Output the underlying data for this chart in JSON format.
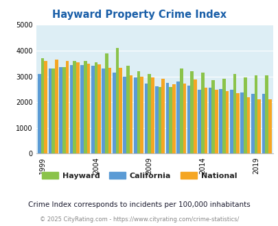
{
  "title": "Hayward Property Crime Index",
  "years": [
    1999,
    2000,
    2001,
    2002,
    2003,
    2004,
    2005,
    2006,
    2007,
    2008,
    2009,
    2010,
    2011,
    2012,
    2013,
    2014,
    2015,
    2016,
    2017,
    2018,
    2019,
    2020
  ],
  "hayward": [
    3700,
    3300,
    3350,
    3600,
    3600,
    3550,
    3900,
    4100,
    3400,
    3200,
    3100,
    2600,
    2600,
    3300,
    3200,
    3150,
    2850,
    2900,
    3100,
    2950,
    3050,
    3050
  ],
  "california": [
    3100,
    3300,
    3350,
    3450,
    3450,
    3400,
    3300,
    3150,
    3000,
    2950,
    2720,
    2620,
    2750,
    2800,
    2650,
    2470,
    2550,
    2520,
    2490,
    2380,
    2330,
    2330
  ],
  "national": [
    3600,
    3650,
    3600,
    3550,
    3500,
    3470,
    3340,
    3340,
    3050,
    3000,
    2950,
    2920,
    2700,
    2730,
    2870,
    2550,
    2490,
    2440,
    2360,
    2200,
    2100,
    2100
  ],
  "hayward_color": "#8bc34a",
  "california_color": "#5b9bd5",
  "national_color": "#f5a623",
  "bg_color": "#ddeef5",
  "title_color": "#1a5fa8",
  "legend_labels": [
    "Hayward",
    "California",
    "National"
  ],
  "footnote": "Crime Index corresponds to incidents per 100,000 inhabitants",
  "copyright": "© 2025 CityRating.com - https://www.cityrating.com/crime-statistics/",
  "ylim": [
    0,
    5000
  ],
  "yticks": [
    0,
    1000,
    2000,
    3000,
    4000,
    5000
  ],
  "xtick_years": [
    1999,
    2004,
    2009,
    2014,
    2019
  ]
}
